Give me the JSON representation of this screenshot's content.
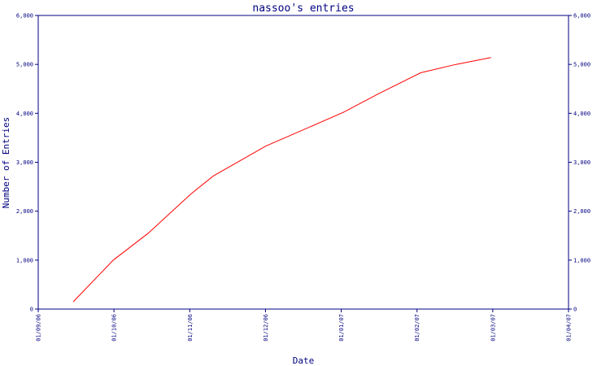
{
  "chart_data": {
    "type": "line",
    "title": "nassoo's entries",
    "xlabel": "Date",
    "ylabel": "Number of Entries",
    "x_ticks": [
      "01/09/06",
      "01/10/06",
      "01/11/06",
      "01/12/06",
      "01/01/07",
      "01/02/07",
      "01/03/07",
      "01/04/07"
    ],
    "y_ticks": [
      "0",
      "1,000",
      "2,000",
      "3,000",
      "4,000",
      "5,000",
      "6,000"
    ],
    "ylim": [
      0,
      6000
    ],
    "xlim": [
      "2006-09-01",
      "2007-04-01"
    ],
    "grid": false,
    "right_axis_mirrored": true,
    "series": [
      {
        "color": "#ff0000",
        "x": [
          "2006-09-15",
          "2006-10-01",
          "2006-10-15",
          "2006-11-01",
          "2006-11-10",
          "2006-12-01",
          "2006-12-10",
          "2007-01-01",
          "2007-01-15",
          "2007-02-01",
          "2007-02-15",
          "2007-03-01"
        ],
        "y": [
          150,
          1000,
          1550,
          2350,
          2720,
          3330,
          3530,
          4020,
          4400,
          4830,
          5000,
          5140
        ]
      }
    ]
  }
}
